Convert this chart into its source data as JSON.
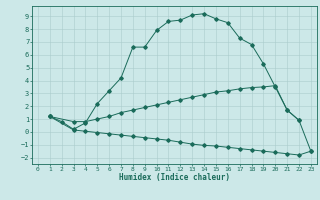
{
  "xlabel": "Humidex (Indice chaleur)",
  "bg_color": "#cce8e8",
  "grid_color": "#aacccc",
  "line_color": "#1a6b5a",
  "xlim": [
    -0.5,
    23.5
  ],
  "ylim": [
    -2.5,
    9.8
  ],
  "xticks": [
    0,
    1,
    2,
    3,
    4,
    5,
    6,
    7,
    8,
    9,
    10,
    11,
    12,
    13,
    14,
    15,
    16,
    17,
    18,
    19,
    20,
    21,
    22,
    23
  ],
  "yticks": [
    -2,
    -1,
    0,
    1,
    2,
    3,
    4,
    5,
    6,
    7,
    8,
    9
  ],
  "line1_x": [
    1,
    2,
    3,
    4,
    5,
    6,
    7,
    8,
    9,
    10,
    11,
    12,
    13,
    14,
    15,
    16,
    17,
    18,
    19,
    20,
    21,
    22,
    23
  ],
  "line1_y": [
    1.2,
    0.8,
    0.2,
    0.7,
    2.2,
    3.2,
    4.2,
    6.6,
    6.6,
    7.9,
    8.6,
    8.7,
    9.1,
    9.2,
    8.8,
    8.5,
    7.3,
    6.8,
    5.3,
    3.5,
    1.7,
    0.9,
    -1.5
  ],
  "line2_x": [
    1,
    3,
    4,
    5,
    6,
    7,
    8,
    9,
    10,
    11,
    12,
    13,
    14,
    15,
    16,
    17,
    18,
    19,
    20,
    21,
    22
  ],
  "line2_y": [
    1.2,
    0.8,
    0.8,
    1.0,
    1.2,
    1.5,
    1.7,
    1.9,
    2.1,
    2.3,
    2.5,
    2.7,
    2.9,
    3.1,
    3.2,
    3.35,
    3.45,
    3.5,
    3.6,
    1.7,
    0.9
  ],
  "line3_x": [
    1,
    3,
    4,
    5,
    6,
    7,
    8,
    9,
    10,
    11,
    12,
    13,
    14,
    15,
    16,
    17,
    18,
    19,
    20,
    21,
    22,
    23
  ],
  "line3_y": [
    1.2,
    0.15,
    0.05,
    -0.05,
    -0.15,
    -0.25,
    -0.35,
    -0.45,
    -0.55,
    -0.65,
    -0.8,
    -0.95,
    -1.05,
    -1.1,
    -1.2,
    -1.3,
    -1.4,
    -1.5,
    -1.6,
    -1.7,
    -1.8,
    -1.5
  ]
}
